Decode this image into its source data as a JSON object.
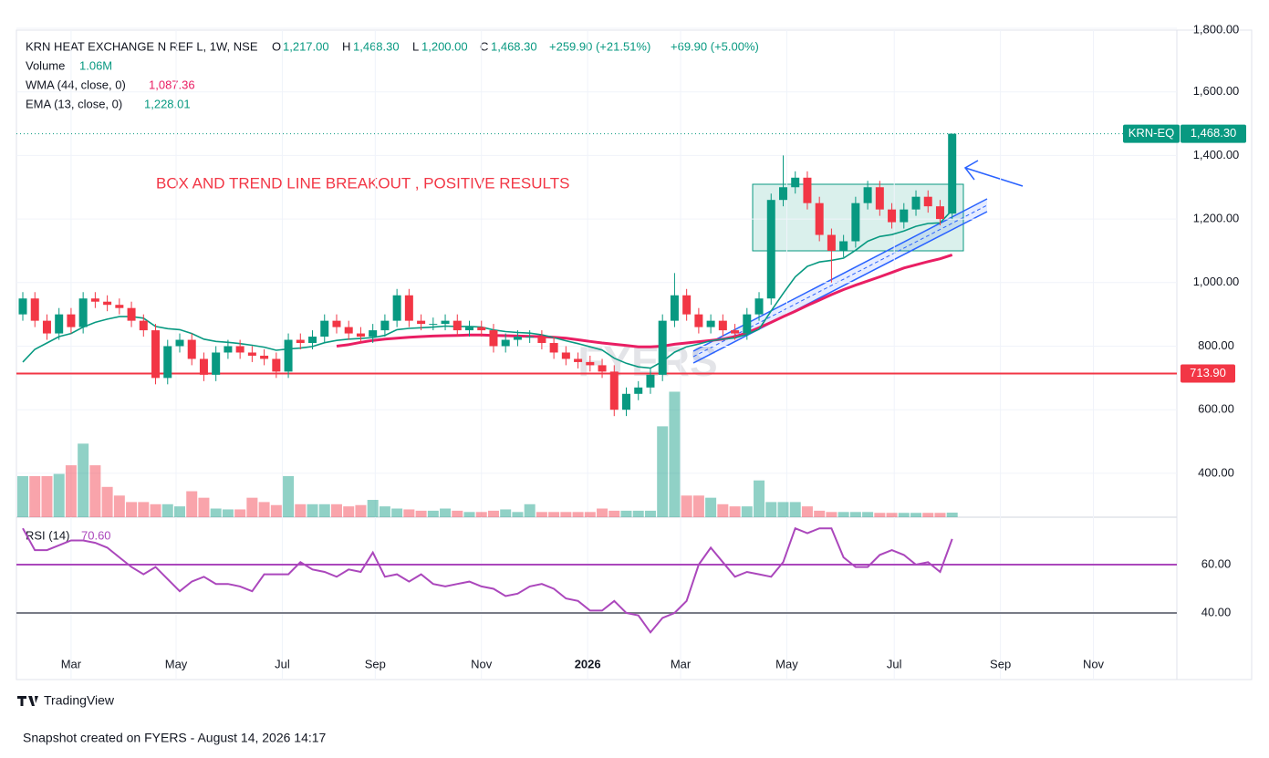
{
  "header": {
    "symbol": "KRN HEAT EXCHANGE N REF L, 1W, NSE",
    "ohlc": [
      {
        "key": "O",
        "value": "1,217.00"
      },
      {
        "key": "H",
        "value": "1,468.30"
      },
      {
        "key": "L",
        "value": "1,200.00"
      },
      {
        "key": "C",
        "value": "1,468.30"
      }
    ],
    "change": "+259.90 (+21.51%)",
    "change2": "+69.90 (+5.00%)",
    "volume_name": "Volume",
    "volume_value": "1.06M",
    "annotation": "BOX AND TREND LINE BREAKOUT , POSITIVE RESULTS",
    "watermark": "FYERS",
    "brand": "TradingView",
    "footer": "Snapshot created on FYERS - August 14, 2026 14:17"
  },
  "chart_data": [
    {
      "type": "candlestick",
      "name": "KRN-EQ",
      "up_color": "#089981",
      "down_color": "#f23645",
      "open": [
        900,
        950,
        880,
        840,
        900,
        860,
        950,
        940,
        930,
        920,
        880,
        850,
        700,
        800,
        820,
        760,
        710,
        780,
        800,
        780,
        770,
        760,
        720,
        820,
        810,
        830,
        880,
        860,
        840,
        830,
        850,
        880,
        960,
        880,
        870,
        870,
        880,
        850,
        860,
        850,
        800,
        820,
        830,
        830,
        810,
        780,
        760,
        750,
        740,
        720,
        600,
        650,
        670,
        710,
        880,
        960,
        900,
        860,
        880,
        850,
        840,
        900,
        950,
        1260,
        1300,
        1330,
        1250,
        1150,
        1100,
        1130,
        1250,
        1300,
        1230,
        1190,
        1230,
        1270,
        1240,
        1217
      ],
      "high": [
        970,
        970,
        900,
        920,
        920,
        970,
        970,
        960,
        950,
        940,
        900,
        870,
        820,
        840,
        840,
        780,
        800,
        820,
        820,
        800,
        790,
        780,
        840,
        840,
        850,
        900,
        900,
        880,
        860,
        870,
        900,
        980,
        980,
        900,
        890,
        900,
        900,
        880,
        880,
        870,
        840,
        850,
        850,
        850,
        830,
        800,
        780,
        770,
        760,
        740,
        670,
        690,
        730,
        900,
        1030,
        980,
        920,
        900,
        900,
        870,
        920,
        970,
        1280,
        1400,
        1350,
        1350,
        1270,
        1170,
        1150,
        1270,
        1320,
        1320,
        1250,
        1250,
        1290,
        1290,
        1260,
        1468.3
      ],
      "low": [
        880,
        860,
        820,
        820,
        840,
        840,
        920,
        910,
        900,
        860,
        830,
        680,
        680,
        780,
        740,
        690,
        690,
        760,
        760,
        750,
        740,
        700,
        700,
        790,
        790,
        810,
        840,
        820,
        810,
        810,
        830,
        860,
        860,
        850,
        850,
        850,
        830,
        830,
        830,
        780,
        780,
        800,
        810,
        790,
        760,
        740,
        730,
        720,
        700,
        580,
        580,
        630,
        650,
        690,
        860,
        880,
        840,
        840,
        830,
        820,
        820,
        880,
        930,
        1240,
        1280,
        1230,
        1130,
        1000,
        1080,
        1110,
        1230,
        1210,
        1170,
        1170,
        1210,
        1220,
        1180,
        1200
      ],
      "close": [
        950,
        880,
        840,
        900,
        860,
        950,
        940,
        930,
        920,
        880,
        850,
        700,
        800,
        820,
        760,
        710,
        780,
        800,
        780,
        770,
        760,
        720,
        820,
        810,
        830,
        880,
        860,
        840,
        830,
        850,
        880,
        960,
        880,
        870,
        870,
        880,
        850,
        860,
        850,
        800,
        820,
        830,
        830,
        810,
        780,
        760,
        750,
        740,
        720,
        600,
        650,
        670,
        710,
        880,
        960,
        900,
        860,
        880,
        850,
        840,
        900,
        950,
        1260,
        1300,
        1330,
        1250,
        1150,
        1100,
        1130,
        1250,
        1300,
        1230,
        1190,
        1230,
        1270,
        1240,
        1200,
        1468.3
      ],
      "last_price_label": "1,468.30",
      "hline": {
        "value": 713.9,
        "label": "713.90",
        "color": "#f23645"
      },
      "series": [
        {
          "name": "WMA (44, close, 0)",
          "color": "#e91e63",
          "last_label": "1,087.36",
          "values": [
            null,
            null,
            null,
            null,
            null,
            null,
            null,
            null,
            null,
            null,
            null,
            null,
            null,
            null,
            null,
            null,
            null,
            null,
            null,
            null,
            null,
            null,
            null,
            null,
            null,
            null,
            800,
            805,
            812,
            818,
            822,
            825,
            828,
            830,
            832,
            833,
            834,
            835,
            835,
            834,
            833,
            832,
            831,
            830,
            828,
            825,
            820,
            815,
            810,
            806,
            802,
            798,
            798,
            800,
            806,
            810,
            814,
            818,
            822,
            830,
            842,
            858,
            875,
            893,
            910,
            928,
            945,
            962,
            978,
            992,
            1005,
            1018,
            1032,
            1046,
            1056,
            1066,
            1075,
            1087.36
          ]
        },
        {
          "name": "EMA (13, close, 0)",
          "color": "#089981",
          "last_label": "1,228.01",
          "values": [
            750,
            790,
            810,
            830,
            840,
            860,
            875,
            885,
            893,
            893,
            888,
            862,
            855,
            852,
            840,
            822,
            815,
            812,
            808,
            803,
            797,
            787,
            791,
            794,
            799,
            811,
            818,
            822,
            824,
            827,
            834,
            852,
            856,
            858,
            860,
            863,
            862,
            862,
            860,
            851,
            846,
            843,
            841,
            836,
            827,
            817,
            808,
            798,
            788,
            762,
            746,
            735,
            731,
            752,
            781,
            798,
            807,
            817,
            822,
            826,
            837,
            853,
            911,
            966,
            1018,
            1051,
            1065,
            1070,
            1077,
            1102,
            1130,
            1145,
            1151,
            1162,
            1177,
            1186,
            1188,
            1228.01
          ]
        }
      ],
      "ylim": [
        262,
        1800
      ],
      "yticks": [
        {
          "value": 1800,
          "label": "1,800.00"
        },
        {
          "value": 1600,
          "label": "1,600.00"
        },
        {
          "value": 1400,
          "label": "1,400.00"
        },
        {
          "value": 1200,
          "label": "1,200.00"
        },
        {
          "value": 1000,
          "label": "1,000.00"
        },
        {
          "value": 800,
          "label": "800.00"
        },
        {
          "value": 600,
          "label": "600.00"
        },
        {
          "value": 400,
          "label": "400.00"
        }
      ],
      "xticks": [
        {
          "value": 4,
          "label": "Mar"
        },
        {
          "value": 12.7,
          "label": "May"
        },
        {
          "value": 21.5,
          "label": "Jul"
        },
        {
          "value": 29.2,
          "label": "Sep"
        },
        {
          "value": 38,
          "label": "Nov"
        },
        {
          "value": 46.8,
          "label": "2026"
        },
        {
          "value": 54.5,
          "label": "Mar"
        },
        {
          "value": 63.3,
          "label": "May"
        },
        {
          "value": 72.2,
          "label": "Jul"
        },
        {
          "value": 81,
          "label": "Sep"
        },
        {
          "value": 88.7,
          "label": "Nov"
        }
      ],
      "grid": true
    },
    {
      "type": "volume",
      "name": "Volume",
      "up_color": "rgba(8,153,129,0.45)",
      "down_color": "rgba(242,54,69,0.45)",
      "values": [
        9.5,
        9.5,
        9.5,
        10,
        12,
        17,
        12,
        7,
        5,
        3.5,
        3.5,
        3,
        3,
        2.5,
        6,
        4.5,
        2,
        1.8,
        1.8,
        4.5,
        3.5,
        2.8,
        9.5,
        3,
        3,
        3,
        3,
        2.5,
        2.8,
        4,
        2.5,
        2,
        1.8,
        1.5,
        1.5,
        2,
        1.5,
        1.2,
        1.2,
        1.5,
        1.8,
        1.2,
        3,
        1.2,
        1.2,
        1.2,
        1.2,
        1.2,
        2,
        1.5,
        1.5,
        1.5,
        1.5,
        21,
        29,
        5,
        5,
        4.5,
        3,
        2.5,
        2.5,
        8.5,
        3.5,
        3.5,
        3.5,
        2.5,
        1.5,
        1.2,
        1.2,
        1.2,
        1.2,
        1,
        1,
        1,
        1,
        1,
        1,
        1.06
      ],
      "ylim": [
        0,
        113
      ]
    },
    {
      "type": "line",
      "name": "RSI (14)",
      "color": "#ab47bc",
      "last_label": "70.60",
      "values": [
        75,
        66,
        66,
        68,
        70,
        70,
        69,
        67,
        63,
        59,
        56,
        59,
        54,
        49,
        53,
        55,
        52,
        52,
        51,
        49,
        56,
        56,
        56,
        61,
        58,
        57,
        55,
        58,
        57,
        65,
        55,
        56,
        53,
        56,
        52,
        51,
        52,
        53,
        51,
        50,
        47,
        48,
        51,
        52,
        50,
        46,
        45,
        41,
        41,
        45,
        40,
        39,
        32,
        38,
        40,
        45,
        60,
        67,
        61,
        55,
        57,
        56,
        55,
        61,
        75,
        73,
        75,
        75,
        63,
        59,
        59,
        64,
        66,
        64,
        60,
        61,
        57,
        70.6
      ],
      "ylim": [
        12.5,
        79.6
      ],
      "yticks": [
        {
          "value": 40,
          "label": "40.00"
        },
        {
          "value": 60,
          "label": "60.00"
        }
      ],
      "tick_line_colors": [
        "#787b86",
        "#ab47bc"
      ]
    }
  ]
}
